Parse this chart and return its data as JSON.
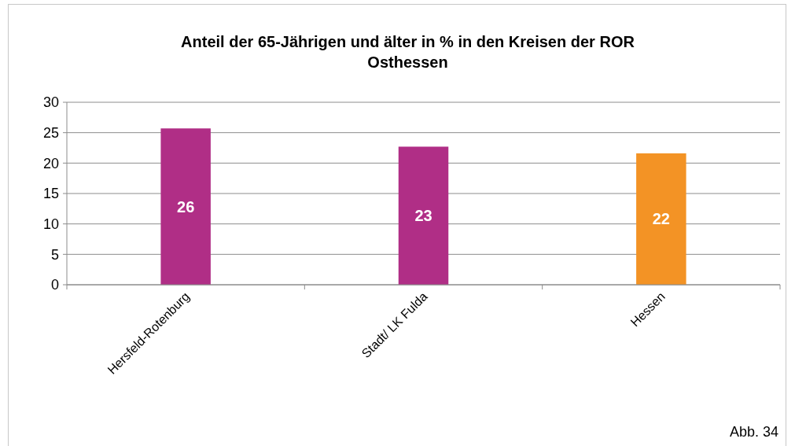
{
  "chart_data": {
    "type": "bar",
    "title": "Anteil der 65-Jährigen und älter in % in den Kreisen der ROR Osthessen",
    "categories": [
      "Hersfeld-Rotenburg",
      "Stadt/ LK Fulda",
      "Hessen"
    ],
    "values": [
      25.7,
      22.7,
      21.6
    ],
    "colors": [
      "#b02e86",
      "#b02e86",
      "#f39325"
    ],
    "value_labels": [
      "26",
      "23",
      "22"
    ],
    "ylim": [
      0,
      30
    ],
    "yticks": [
      0,
      5,
      10,
      15,
      20,
      25,
      30
    ],
    "grid": "y",
    "annotations": [
      "Abb. 34"
    ]
  }
}
